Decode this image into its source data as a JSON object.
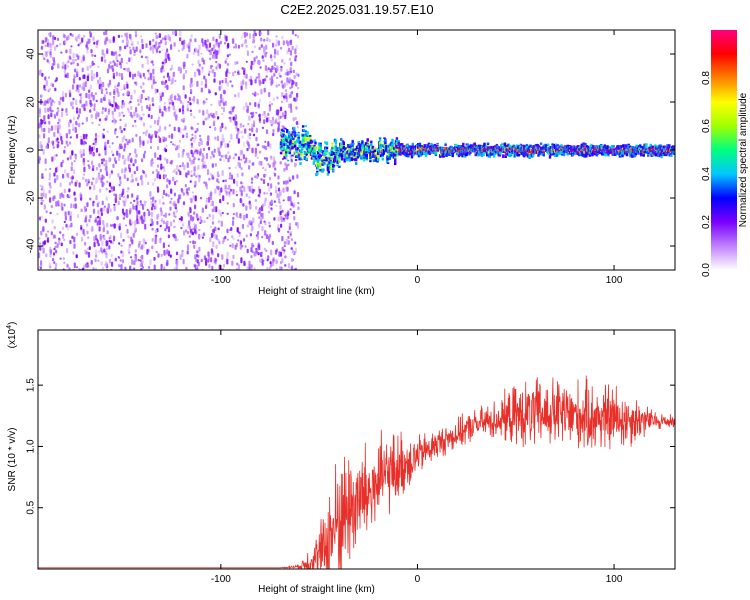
{
  "title": "C2E2.2025.031.19.57.E10",
  "chart_data": [
    {
      "type": "heatmap",
      "title": "C2E2.2025.031.19.57.E10",
      "xlabel": "Height of straight line (km)",
      "ylabel": "Frequency (Hz)",
      "xlim": [
        -193,
        131
      ],
      "ylim": [
        -50,
        50
      ],
      "x_ticks": [
        -100,
        0,
        100
      ],
      "y_ticks": [
        -40,
        -20,
        0,
        20,
        40
      ],
      "grid": false,
      "description_regions": [
        {
          "x_range": [
            -193,
            -65
          ],
          "content": "broadband noise across all frequencies"
        },
        {
          "x_range": [
            -65,
            -40
          ],
          "content": "narrow band near 0 Hz with scatter between -10 and 10 Hz"
        },
        {
          "x_range": [
            -40,
            131
          ],
          "content": "strong narrow band centered near 0 Hz"
        }
      ],
      "colorbar": {
        "label": "Normalized spectral amplitude",
        "range": [
          0.0,
          1.0
        ],
        "ticks": [
          0.0,
          0.2,
          0.4,
          0.6,
          0.8
        ],
        "colors": [
          "#ffffff",
          "#c080ff",
          "#7a00ff",
          "#0000ff",
          "#00c8ff",
          "#00ff7f",
          "#a0ff00",
          "#ffff00",
          "#ff8000",
          "#ff0000",
          "#ff0080"
        ]
      }
    },
    {
      "type": "line",
      "xlabel": "Height of straight line (km)",
      "ylabel": "SNR (10 * v/v)",
      "y_multiplier": "(x10",
      "y_multiplier_exp": "4",
      "y_multiplier_close": ")",
      "xlim": [
        -193,
        131
      ],
      "ylim": [
        0,
        1.95
      ],
      "x_ticks": [
        -100,
        0,
        100
      ],
      "y_ticks": [
        0.5,
        1.0,
        1.5
      ],
      "grid": false,
      "series": [
        {
          "color": "#e8302a",
          "x": [
            -193,
            -150,
            -100,
            -70,
            -60,
            -50,
            -45,
            -40,
            -35,
            -30,
            -25,
            -20,
            -15,
            -10,
            -5,
            0,
            5,
            10,
            20,
            30,
            40,
            50,
            60,
            70,
            80,
            90,
            100,
            110,
            120,
            131
          ],
          "y": [
            0.01,
            0.01,
            0.01,
            0.01,
            0.02,
            0.1,
            0.25,
            0.4,
            0.5,
            0.55,
            0.62,
            0.7,
            0.78,
            0.82,
            0.88,
            0.92,
            0.97,
            1.02,
            1.1,
            1.18,
            1.22,
            1.25,
            1.26,
            1.27,
            1.25,
            1.24,
            1.23,
            1.22,
            1.21,
            1.2
          ],
          "spread": [
            0.0,
            0.0,
            0.0,
            0.0,
            0.02,
            0.3,
            0.5,
            0.7,
            0.6,
            0.55,
            0.5,
            0.45,
            0.4,
            0.35,
            0.3,
            0.2,
            0.18,
            0.15,
            0.15,
            0.15,
            0.2,
            0.3,
            0.35,
            0.35,
            0.35,
            0.35,
            0.35,
            0.25,
            0.1,
            0.06
          ]
        }
      ]
    }
  ]
}
